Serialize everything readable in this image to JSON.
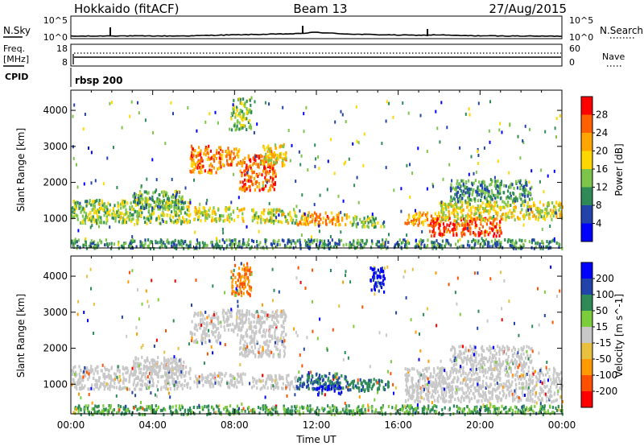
{
  "header": {
    "left": "Hokkaido (fitACF)",
    "center": "Beam 13",
    "right": "27/Aug/2015"
  },
  "chart_data": [
    {
      "type": "line",
      "panel": "noise",
      "left_label": "N.Sky",
      "right_label": "N.Search",
      "left_ticks": [
        "10^5",
        "10^0"
      ],
      "right_ticks": [
        "10^5",
        "10^0"
      ],
      "series": [
        {
          "name": "N.Sky",
          "x": [
            0,
            1,
            2,
            3,
            4,
            5,
            6,
            7,
            8,
            9,
            10,
            11,
            12,
            13,
            14,
            15,
            16,
            17,
            18,
            19,
            20,
            21,
            22,
            23,
            24
          ],
          "y": [
            0.3,
            0.3,
            0.5,
            0.4,
            0.4,
            0.4,
            0.5,
            0.8,
            1.0,
            1.2,
            1.4,
            1.6,
            2.4,
            1.7,
            1.3,
            1.1,
            0.9,
            0.8,
            1.0,
            0.6,
            0.5,
            0.4,
            0.4,
            0.3,
            0.3
          ]
        }
      ]
    },
    {
      "type": "line",
      "panel": "frequency",
      "left_label": "Freq.",
      "left_unit": "[MHz]",
      "left_ticks": [
        "18",
        "8"
      ],
      "right_label": "Nave",
      "right_ticks": [
        "60",
        "0"
      ],
      "cpid_label": "CPID",
      "cpid_text": "rbsp 200"
    },
    {
      "type": "heatmap",
      "panel": "power",
      "ylabel": "Slant Range [km]",
      "yticks": [
        "4000",
        "3000",
        "2000",
        "1000"
      ],
      "colorbar": {
        "label": "Power [dB]",
        "ticks": [
          "28",
          "24",
          "20",
          "16",
          "12",
          "8",
          "4"
        ],
        "colors": [
          "#0000ff",
          "#2244aa",
          "#2e8b57",
          "#7cc44a",
          "#ffd700",
          "#ffa500",
          "#ff6000",
          "#ff0000"
        ]
      },
      "regions": [
        {
          "t0": 0.0,
          "t1": 5.8,
          "r0": 900,
          "r1": 1550,
          "level": 0.45
        },
        {
          "t0": 3.0,
          "t1": 5.5,
          "r0": 1300,
          "r1": 1800,
          "level": 0.35
        },
        {
          "t0": 5.8,
          "t1": 7.3,
          "r0": 2300,
          "r1": 3050,
          "level": 0.8
        },
        {
          "t0": 7.3,
          "t1": 8.2,
          "r0": 2500,
          "r1": 3000,
          "level": 0.75
        },
        {
          "t0": 8.2,
          "t1": 10.0,
          "r0": 1800,
          "r1": 2800,
          "level": 0.85
        },
        {
          "t0": 9.3,
          "t1": 10.5,
          "r0": 2500,
          "r1": 3100,
          "level": 0.6
        },
        {
          "t0": 6.0,
          "t1": 8.5,
          "r0": 950,
          "r1": 1350,
          "level": 0.55
        },
        {
          "t0": 8.8,
          "t1": 11.0,
          "r0": 900,
          "r1": 1300,
          "level": 0.5
        },
        {
          "t0": 11.0,
          "t1": 13.5,
          "r0": 850,
          "r1": 1200,
          "level": 0.75
        },
        {
          "t0": 13.5,
          "t1": 15.3,
          "r0": 800,
          "r1": 1100,
          "level": 0.4
        },
        {
          "t0": 16.3,
          "t1": 18.0,
          "r0": 850,
          "r1": 1200,
          "level": 0.7
        },
        {
          "t0": 17.5,
          "t1": 21.0,
          "r0": 550,
          "r1": 1050,
          "level": 0.9
        },
        {
          "t0": 18.0,
          "t1": 24.0,
          "r0": 1000,
          "r1": 1500,
          "level": 0.55
        },
        {
          "t0": 18.5,
          "t1": 22.5,
          "r0": 1500,
          "r1": 2100,
          "level": 0.3
        },
        {
          "t0": 0.0,
          "t1": 24.0,
          "r0": 200,
          "r1": 450,
          "level": 0.3
        },
        {
          "t0": 7.8,
          "t1": 8.8,
          "r0": 3500,
          "r1": 4400,
          "level": 0.45
        }
      ]
    },
    {
      "type": "heatmap",
      "panel": "velocity",
      "ylabel": "Slant Range [km]",
      "yticks": [
        "4000",
        "3000",
        "2000",
        "1000"
      ],
      "xlabel": "Time UT",
      "xticks": [
        "00:00",
        "04:00",
        "08:00",
        "12:00",
        "16:00",
        "20:00",
        "00:00"
      ],
      "colorbar": {
        "label": "Velocity [m s^-1]",
        "ticks": [
          "200",
          "100",
          "50",
          "15",
          "-15",
          "-50",
          "-100",
          "-200"
        ],
        "colors": [
          "#ff0000",
          "#ff5000",
          "#ff9a00",
          "#e8c040",
          "#c8c8c8",
          "#7ccd3c",
          "#2e8b57",
          "#2244aa",
          "#0000ff"
        ]
      },
      "regions": [
        {
          "t0": 0.0,
          "t1": 5.8,
          "r0": 900,
          "r1": 1550,
          "v": 0
        },
        {
          "t0": 3.0,
          "t1": 5.5,
          "r0": 1300,
          "r1": 1800,
          "v": 0
        },
        {
          "t0": 5.8,
          "t1": 7.3,
          "r0": 2200,
          "r1": 3050,
          "v": 0
        },
        {
          "t0": 7.3,
          "t1": 8.2,
          "r0": 2500,
          "r1": 3100,
          "v": 0
        },
        {
          "t0": 8.2,
          "t1": 10.5,
          "r0": 1800,
          "r1": 3100,
          "v": 0
        },
        {
          "t0": 6.0,
          "t1": 8.5,
          "r0": 950,
          "r1": 1350,
          "v": 0
        },
        {
          "t0": 8.8,
          "t1": 11.0,
          "r0": 900,
          "r1": 1300,
          "v": 0
        },
        {
          "t0": 11.0,
          "t1": 13.5,
          "r0": 900,
          "r1": 1350,
          "v": 0.6
        },
        {
          "t0": 12.0,
          "t1": 13.2,
          "r0": 750,
          "r1": 1000,
          "v": 0.95
        },
        {
          "t0": 13.5,
          "t1": 15.5,
          "r0": 850,
          "r1": 1200,
          "v": 0.55
        },
        {
          "t0": 16.3,
          "t1": 24.0,
          "r0": 550,
          "r1": 1500,
          "v": 0
        },
        {
          "t0": 18.5,
          "t1": 22.5,
          "r0": 1500,
          "r1": 2100,
          "v": 0
        },
        {
          "t0": 0.0,
          "t1": 24.0,
          "r0": 200,
          "r1": 450,
          "v": 0.4
        },
        {
          "t0": 7.8,
          "t1": 8.8,
          "r0": 3500,
          "r1": 4400,
          "v": -0.6
        },
        {
          "t0": 14.5,
          "t1": 15.3,
          "r0": 3600,
          "r1": 4300,
          "v": 0.95
        }
      ]
    }
  ]
}
